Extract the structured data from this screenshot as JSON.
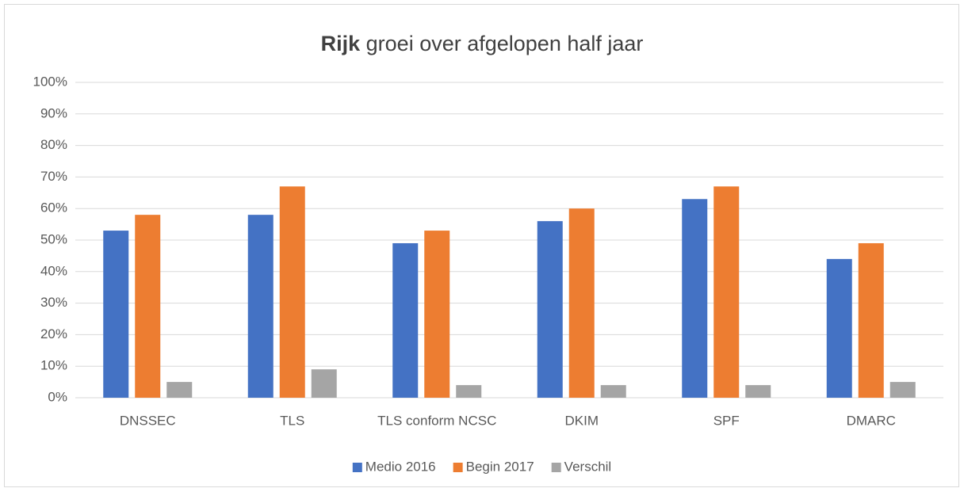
{
  "chart_data": {
    "type": "bar",
    "title_bold": "Rijk",
    "title": "groei over afgelopen half jaar",
    "categories": [
      "DNSSEC",
      "TLS",
      "TLS conform NCSC",
      "DKIM",
      "SPF",
      "DMARC"
    ],
    "series": [
      {
        "name": "Medio 2016",
        "color": "#4472c4",
        "values": [
          53,
          58,
          49,
          56,
          63,
          44
        ]
      },
      {
        "name": "Begin 2017",
        "color": "#ed7d31",
        "values": [
          58,
          67,
          53,
          60,
          67,
          49
        ]
      },
      {
        "name": "Verschil",
        "color": "#a5a5a5",
        "values": [
          5,
          9,
          4,
          4,
          4,
          5
        ]
      }
    ],
    "ylim": [
      0,
      100
    ],
    "yticks": [
      {
        "value": 0,
        "label": "0%"
      },
      {
        "value": 10,
        "label": "10%"
      },
      {
        "value": 20,
        "label": "20%"
      },
      {
        "value": 30,
        "label": "30%"
      },
      {
        "value": 40,
        "label": "40%"
      },
      {
        "value": 50,
        "label": "50%"
      },
      {
        "value": 60,
        "label": "60%"
      },
      {
        "value": 70,
        "label": "70%"
      },
      {
        "value": 80,
        "label": "80%"
      },
      {
        "value": 90,
        "label": "90%"
      },
      {
        "value": 100,
        "label": "100%"
      }
    ],
    "grid": true,
    "legend": "bottom"
  }
}
